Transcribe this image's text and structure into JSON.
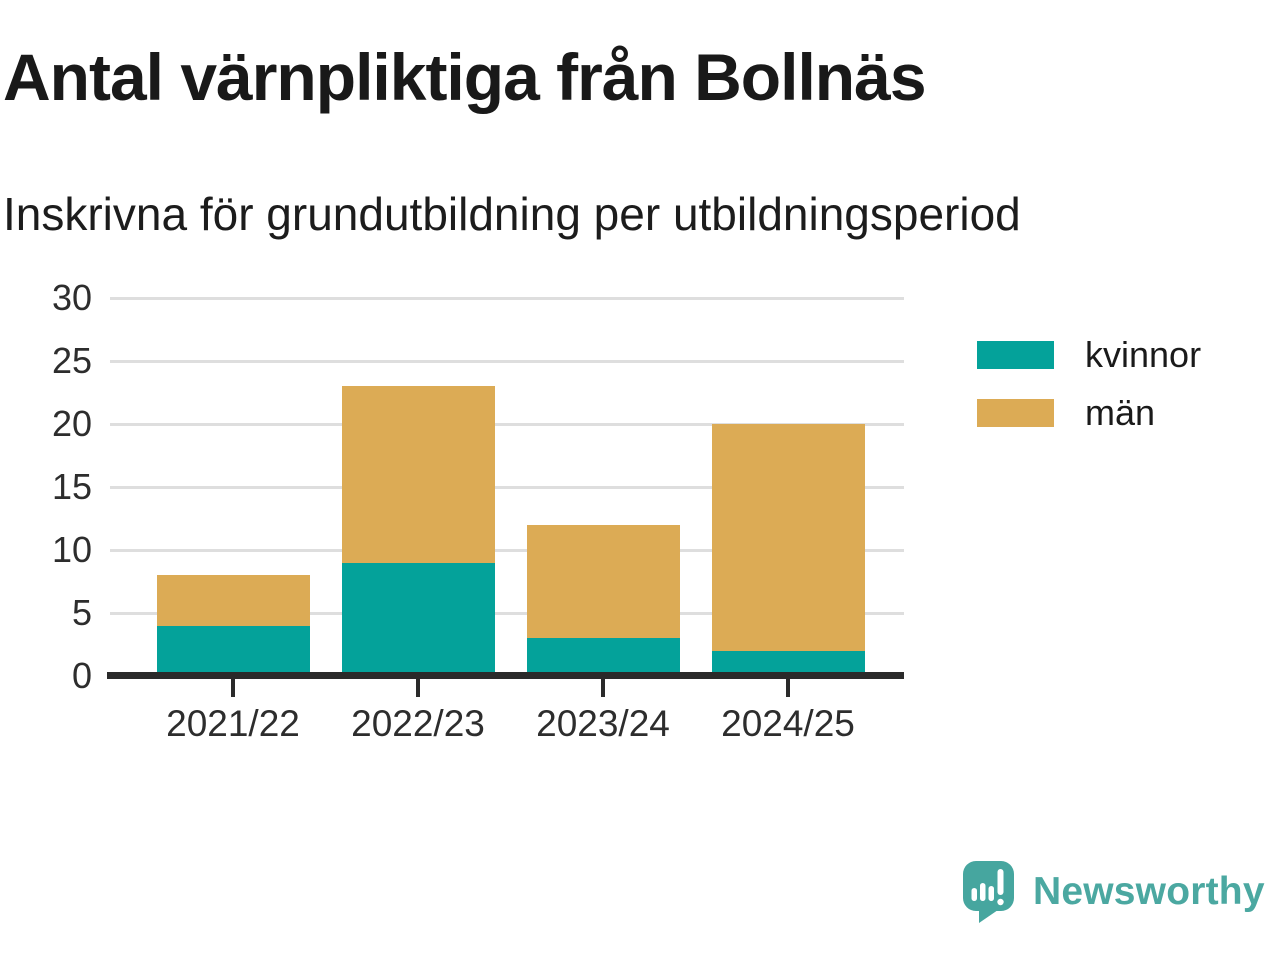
{
  "header": {
    "title": "Antal värnpliktiga från Bollnäs",
    "subtitle": "Inskrivna för grundutbildning per utbildningsperiod"
  },
  "chart_data": {
    "type": "bar",
    "stacked": true,
    "title": "Antal värnpliktiga från Bollnäs",
    "subtitle": "Inskrivna för grundutbildning per utbildningsperiod",
    "categories": [
      "2021/22",
      "2022/23",
      "2023/24",
      "2024/25"
    ],
    "series": [
      {
        "name": "kvinnor",
        "color": "#04a29a",
        "values": [
          4,
          9,
          3,
          2
        ]
      },
      {
        "name": "män",
        "color": "#dcab55",
        "values": [
          4,
          14,
          9,
          18
        ]
      }
    ],
    "stack_totals": [
      8,
      23,
      12,
      20
    ],
    "xlabel": "",
    "ylabel": "",
    "ylim": [
      0,
      30
    ],
    "yticks": [
      0,
      5,
      10,
      15,
      20,
      25,
      30
    ],
    "grid": true,
    "legend_position": "right"
  },
  "legend": {
    "items": [
      {
        "label": "kvinnor",
        "color": "#04a29a"
      },
      {
        "label": "män",
        "color": "#dcab55"
      }
    ]
  },
  "branding": {
    "wordmark": "Newsworthy",
    "logo_icon": "newsworthy-speech-bubble-chart-icon",
    "color": "#4ba8a1"
  }
}
